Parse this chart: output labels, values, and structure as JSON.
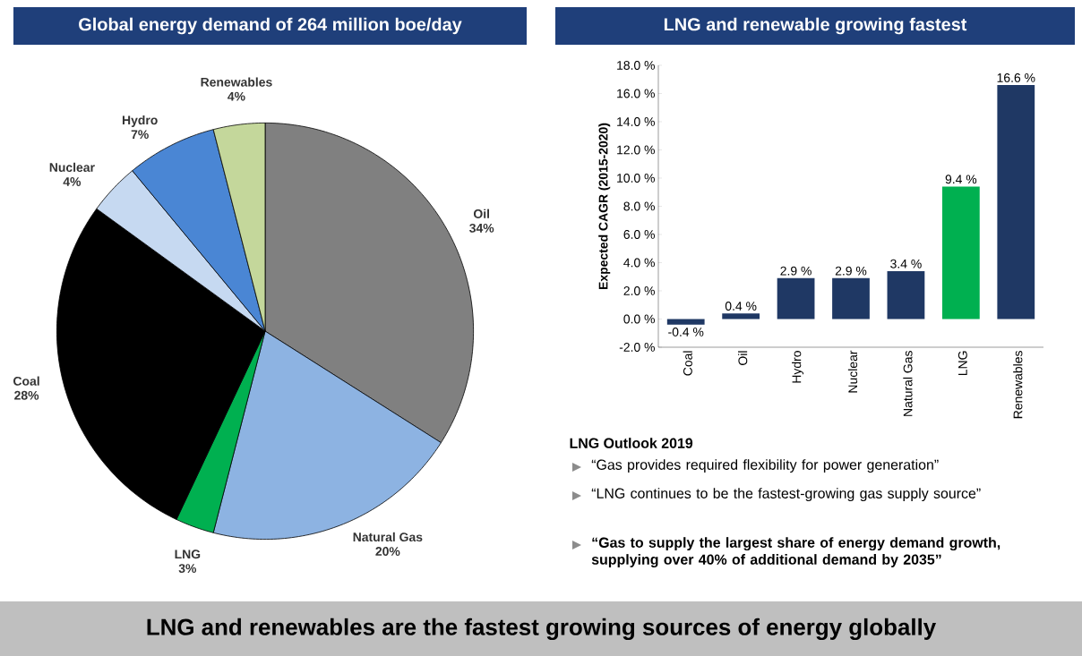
{
  "chart_data": [
    {
      "type": "pie",
      "title": "Global energy demand of 264 million boe/day",
      "categories": [
        "Oil",
        "Natural Gas",
        "LNG",
        "Coal",
        "Nuclear",
        "Hydro",
        "Renewables"
      ],
      "values": [
        34,
        20,
        3,
        28,
        4,
        7,
        4
      ],
      "colors": [
        "#808080",
        "#8db3e2",
        "#00b050",
        "#000000",
        "#c6d9f1",
        "#4a86d4",
        "#c4d79b"
      ],
      "value_labels": [
        "34%",
        "20%",
        "3%",
        "28%",
        "4%",
        "7%",
        "4%"
      ]
    },
    {
      "type": "bar",
      "title": "LNG and renewable growing fastest",
      "ylabel": "Expected CAGR (2015-2020)",
      "categories": [
        "Coal",
        "Oil",
        "Hydro",
        "Nuclear",
        "Natural Gas",
        "LNG",
        "Renewables"
      ],
      "values": [
        -0.4,
        0.4,
        2.9,
        2.9,
        3.4,
        9.4,
        16.6
      ],
      "colors": [
        "#1f3864",
        "#1f3864",
        "#1f3864",
        "#1f3864",
        "#1f3864",
        "#00b050",
        "#1f3864"
      ],
      "value_labels": [
        "-0.4 %",
        "0.4 %",
        "2.9 %",
        "2.9 %",
        "3.4 %",
        "9.4 %",
        "16.6 %"
      ],
      "ylim": [
        -2,
        18
      ],
      "yticks": [
        {
          "value": -2,
          "label": "-2.0 %"
        },
        {
          "value": 0,
          "label": "0.0 %"
        },
        {
          "value": 2,
          "label": "2.0 %"
        },
        {
          "value": 4,
          "label": "4.0 %"
        },
        {
          "value": 6,
          "label": "6.0 %"
        },
        {
          "value": 8,
          "label": "8.0 %"
        },
        {
          "value": 10,
          "label": "10.0 %"
        },
        {
          "value": 12,
          "label": "12.0 %"
        },
        {
          "value": 14,
          "label": "14.0 %"
        },
        {
          "value": 16,
          "label": "16.0 %"
        },
        {
          "value": 18,
          "label": "18.0 %"
        }
      ],
      "grid": false,
      "annotations": [
        "LNG Outlook 2019",
        "“Gas provides required flexibility for power generation”",
        "“LNG continues to be the fastest-growing gas supply source”",
        "“Gas to supply the largest share of energy demand growth, supplying over 40% of additional demand by 2035”",
        "LNG and renewables are the fastest growing sources of energy globally"
      ]
    }
  ]
}
